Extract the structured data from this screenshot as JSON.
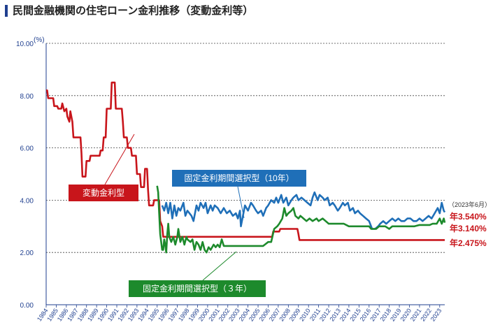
{
  "title": "民間金融機関の住宅ローン金利推移（変動金利等）",
  "chart_data": {
    "type": "line",
    "unit": "(%)",
    "ylim": [
      0,
      10
    ],
    "yticks": [
      "0.00",
      "2.00",
      "4.00",
      "6.00",
      "8.00",
      "10.00"
    ],
    "xlim": [
      1984,
      2023.5
    ],
    "xticks": [
      "1984",
      "1985",
      "1986",
      "1987",
      "1988",
      "1989",
      "1990",
      "1991",
      "1992",
      "1993",
      "1994",
      "1995",
      "1996",
      "1997",
      "1998",
      "1999",
      "2000",
      "2001",
      "2002",
      "2003",
      "2004",
      "2005",
      "2006",
      "2007",
      "2008",
      "2009",
      "2010",
      "2011",
      "2012",
      "2013",
      "2014",
      "2015",
      "2016",
      "2017",
      "2018",
      "2019",
      "2020",
      "2021",
      "2022",
      "2023"
    ],
    "grid": true,
    "as_of": "（2023年6月）",
    "series": [
      {
        "name": "変動金利型",
        "color": "#c8151b",
        "end_label": "年2.475%",
        "points": [
          [
            1984.0,
            8.2
          ],
          [
            1984.1,
            8.2
          ],
          [
            1984.2,
            7.9
          ],
          [
            1984.7,
            7.9
          ],
          [
            1984.8,
            7.6
          ],
          [
            1985.1,
            7.6
          ],
          [
            1985.2,
            7.5
          ],
          [
            1985.5,
            7.5
          ],
          [
            1985.6,
            7.7
          ],
          [
            1985.8,
            7.4
          ],
          [
            1986.0,
            7.5
          ],
          [
            1986.1,
            7.2
          ],
          [
            1986.3,
            7.0
          ],
          [
            1986.4,
            7.4
          ],
          [
            1986.6,
            7.0
          ],
          [
            1986.7,
            6.4
          ],
          [
            1987.4,
            6.4
          ],
          [
            1987.5,
            5.8
          ],
          [
            1987.6,
            4.9
          ],
          [
            1987.9,
            4.9
          ],
          [
            1988.0,
            5.5
          ],
          [
            1988.3,
            5.5
          ],
          [
            1988.4,
            5.7
          ],
          [
            1989.3,
            5.7
          ],
          [
            1989.4,
            5.9
          ],
          [
            1989.6,
            5.9
          ],
          [
            1989.7,
            6.4
          ],
          [
            1989.9,
            6.4
          ],
          [
            1990.0,
            7.5
          ],
          [
            1990.4,
            7.5
          ],
          [
            1990.5,
            8.5
          ],
          [
            1990.8,
            8.5
          ],
          [
            1990.9,
            7.5
          ],
          [
            1991.5,
            7.5
          ],
          [
            1991.6,
            7.0
          ],
          [
            1991.7,
            6.4
          ],
          [
            1992.0,
            6.4
          ],
          [
            1992.1,
            6.0
          ],
          [
            1992.4,
            6.0
          ],
          [
            1992.5,
            5.7
          ],
          [
            1992.9,
            5.7
          ],
          [
            1993.0,
            5.0
          ],
          [
            1993.3,
            5.0
          ],
          [
            1993.4,
            4.5
          ],
          [
            1993.7,
            4.5
          ],
          [
            1993.8,
            5.2
          ],
          [
            1994.0,
            5.2
          ],
          [
            1994.1,
            4.4
          ],
          [
            1994.2,
            3.8
          ],
          [
            1994.6,
            3.8
          ],
          [
            1994.7,
            4.0
          ],
          [
            1995.2,
            4.0
          ],
          [
            1995.3,
            3.2
          ],
          [
            1995.5,
            3.0
          ],
          [
            1995.6,
            2.6
          ],
          [
            2006.4,
            2.6
          ],
          [
            2006.5,
            2.8
          ],
          [
            2007.1,
            2.8
          ],
          [
            2007.2,
            2.9
          ],
          [
            2008.9,
            2.9
          ],
          [
            2009.0,
            2.7
          ],
          [
            2009.1,
            2.475
          ],
          [
            2023.5,
            2.475
          ]
        ]
      },
      {
        "name": "固定金利期間選択型（10年）",
        "color": "#1f6fb8",
        "end_label": "年3.540%",
        "points": [
          [
            1995.5,
            3.8
          ],
          [
            1995.7,
            3.6
          ],
          [
            1995.9,
            3.9
          ],
          [
            1996.1,
            3.5
          ],
          [
            1996.3,
            3.9
          ],
          [
            1996.5,
            3.3
          ],
          [
            1996.7,
            3.8
          ],
          [
            1996.9,
            3.4
          ],
          [
            1997.1,
            3.7
          ],
          [
            1997.3,
            3.6
          ],
          [
            1997.6,
            3.9
          ],
          [
            1997.8,
            3.4
          ],
          [
            1998.0,
            3.6
          ],
          [
            1998.2,
            3.5
          ],
          [
            1998.4,
            3.4
          ],
          [
            1998.6,
            3.2
          ],
          [
            1998.9,
            3.8
          ],
          [
            1999.1,
            3.6
          ],
          [
            1999.3,
            3.9
          ],
          [
            1999.6,
            3.7
          ],
          [
            1999.8,
            3.9
          ],
          [
            2000.0,
            3.5
          ],
          [
            2000.3,
            3.8
          ],
          [
            2000.5,
            3.6
          ],
          [
            2000.7,
            3.8
          ],
          [
            2001.0,
            3.7
          ],
          [
            2001.3,
            3.5
          ],
          [
            2001.6,
            3.7
          ],
          [
            2001.9,
            3.5
          ],
          [
            2002.2,
            3.6
          ],
          [
            2002.5,
            3.4
          ],
          [
            2002.8,
            3.5
          ],
          [
            2003.0,
            3.3
          ],
          [
            2003.2,
            3.6
          ],
          [
            2003.3,
            3.0
          ],
          [
            2003.5,
            3.4
          ],
          [
            2003.7,
            3.8
          ],
          [
            2004.0,
            3.6
          ],
          [
            2004.3,
            3.9
          ],
          [
            2004.5,
            3.8
          ],
          [
            2004.8,
            3.6
          ],
          [
            2005.0,
            3.5
          ],
          [
            2005.3,
            3.6
          ],
          [
            2005.5,
            3.4
          ],
          [
            2005.8,
            3.7
          ],
          [
            2006.0,
            3.8
          ],
          [
            2006.3,
            4.0
          ],
          [
            2006.6,
            3.9
          ],
          [
            2006.8,
            4.1
          ],
          [
            2007.0,
            3.9
          ],
          [
            2007.3,
            4.2
          ],
          [
            2007.5,
            3.9
          ],
          [
            2007.8,
            4.1
          ],
          [
            2008.0,
            3.8
          ],
          [
            2008.3,
            4.0
          ],
          [
            2008.5,
            4.1
          ],
          [
            2008.8,
            4.2
          ],
          [
            2009.0,
            4.0
          ],
          [
            2009.3,
            4.1
          ],
          [
            2009.6,
            4.0
          ],
          [
            2009.9,
            3.9
          ],
          [
            2010.2,
            3.8
          ],
          [
            2010.4,
            4.1
          ],
          [
            2010.6,
            4.3
          ],
          [
            2010.9,
            4.0
          ],
          [
            2011.1,
            4.2
          ],
          [
            2011.4,
            4.1
          ],
          [
            2011.6,
            4.0
          ],
          [
            2011.9,
            4.1
          ],
          [
            2012.1,
            3.8
          ],
          [
            2012.4,
            3.9
          ],
          [
            2012.6,
            3.8
          ],
          [
            2012.9,
            3.6
          ],
          [
            2013.1,
            3.7
          ],
          [
            2013.4,
            3.9
          ],
          [
            2013.6,
            3.8
          ],
          [
            2013.9,
            3.9
          ],
          [
            2014.1,
            3.6
          ],
          [
            2014.4,
            3.7
          ],
          [
            2014.6,
            3.5
          ],
          [
            2014.9,
            3.6
          ],
          [
            2015.1,
            3.5
          ],
          [
            2015.4,
            3.4
          ],
          [
            2015.7,
            3.3
          ],
          [
            2016.0,
            3.2
          ],
          [
            2016.3,
            2.9
          ],
          [
            2016.6,
            2.9
          ],
          [
            2016.9,
            3.0
          ],
          [
            2017.1,
            3.1
          ],
          [
            2017.4,
            3.2
          ],
          [
            2017.7,
            3.1
          ],
          [
            2018.0,
            3.2
          ],
          [
            2018.3,
            3.3
          ],
          [
            2018.6,
            3.2
          ],
          [
            2018.9,
            3.3
          ],
          [
            2019.2,
            3.2
          ],
          [
            2019.5,
            3.2
          ],
          [
            2019.8,
            3.3
          ],
          [
            2020.1,
            3.3
          ],
          [
            2020.4,
            3.2
          ],
          [
            2020.7,
            3.2
          ],
          [
            2021.0,
            3.3
          ],
          [
            2021.3,
            3.2
          ],
          [
            2021.6,
            3.3
          ],
          [
            2021.9,
            3.4
          ],
          [
            2022.2,
            3.3
          ],
          [
            2022.5,
            3.5
          ],
          [
            2022.8,
            3.7
          ],
          [
            2023.0,
            3.5
          ],
          [
            2023.2,
            3.9
          ],
          [
            2023.4,
            3.6
          ],
          [
            2023.5,
            3.54
          ]
        ]
      },
      {
        "name": "固定金利期間選択型（３年）",
        "color": "#1d8a2c",
        "end_label": "年3.140%",
        "points": [
          [
            1995.0,
            4.55
          ],
          [
            1995.1,
            4.3
          ],
          [
            1995.2,
            3.5
          ],
          [
            1995.3,
            2.7
          ],
          [
            1995.5,
            2.1
          ],
          [
            1995.6,
            2.1
          ],
          [
            1995.7,
            2.5
          ],
          [
            1995.8,
            2.3
          ],
          [
            1995.9,
            2.0
          ],
          [
            1996.0,
            2.7
          ],
          [
            1996.1,
            3.1
          ],
          [
            1996.2,
            2.6
          ],
          [
            1996.4,
            2.4
          ],
          [
            1996.6,
            2.6
          ],
          [
            1996.8,
            2.3
          ],
          [
            1997.0,
            2.6
          ],
          [
            1997.1,
            2.9
          ],
          [
            1997.3,
            2.4
          ],
          [
            1997.5,
            2.6
          ],
          [
            1997.7,
            2.3
          ],
          [
            1997.9,
            2.6
          ],
          [
            1998.0,
            2.5
          ],
          [
            1998.3,
            2.4
          ],
          [
            1998.5,
            2.5
          ],
          [
            1998.7,
            2.1
          ],
          [
            1998.9,
            2.4
          ],
          [
            1999.1,
            2.3
          ],
          [
            1999.3,
            2.1
          ],
          [
            1999.5,
            2.4
          ],
          [
            1999.7,
            2.1
          ],
          [
            1999.9,
            2.0
          ],
          [
            2000.1,
            2.2
          ],
          [
            2000.3,
            2.1
          ],
          [
            2000.6,
            2.3
          ],
          [
            2000.8,
            2.2
          ],
          [
            2001.0,
            2.3
          ],
          [
            2001.2,
            2.2
          ],
          [
            2001.4,
            2.5
          ],
          [
            2001.6,
            2.25
          ],
          [
            2002.5,
            2.25
          ],
          [
            2003.5,
            2.25
          ],
          [
            2004.5,
            2.25
          ],
          [
            2005.5,
            2.25
          ],
          [
            2006.0,
            2.4
          ],
          [
            2006.3,
            2.4
          ],
          [
            2006.6,
            2.9
          ],
          [
            2006.9,
            3.0
          ],
          [
            2007.1,
            3.1
          ],
          [
            2007.4,
            3.3
          ],
          [
            2007.6,
            3.7
          ],
          [
            2007.8,
            3.4
          ],
          [
            2008.0,
            3.5
          ],
          [
            2008.3,
            3.6
          ],
          [
            2008.5,
            3.7
          ],
          [
            2008.7,
            3.4
          ],
          [
            2009.0,
            3.3
          ],
          [
            2009.2,
            3.4
          ],
          [
            2009.5,
            3.3
          ],
          [
            2009.8,
            3.2
          ],
          [
            2010.1,
            3.3
          ],
          [
            2010.4,
            3.2
          ],
          [
            2010.8,
            3.3
          ],
          [
            2011.0,
            3.2
          ],
          [
            2011.4,
            3.3
          ],
          [
            2011.7,
            3.2
          ],
          [
            2012.0,
            3.1
          ],
          [
            2012.5,
            3.1
          ],
          [
            2013.0,
            3.1
          ],
          [
            2013.5,
            3.1
          ],
          [
            2014.0,
            3.0
          ],
          [
            2014.5,
            3.0
          ],
          [
            2015.0,
            3.0
          ],
          [
            2015.5,
            3.0
          ],
          [
            2016.0,
            3.0
          ],
          [
            2016.2,
            2.9
          ],
          [
            2016.4,
            2.9
          ],
          [
            2016.7,
            2.9
          ],
          [
            2017.0,
            3.0
          ],
          [
            2017.3,
            3.0
          ],
          [
            2017.6,
            3.0
          ],
          [
            2018.0,
            2.9
          ],
          [
            2018.3,
            3.0
          ],
          [
            2018.7,
            3.0
          ],
          [
            2019.0,
            3.0
          ],
          [
            2019.5,
            3.0
          ],
          [
            2020.0,
            3.0
          ],
          [
            2020.5,
            3.0
          ],
          [
            2021.0,
            3.05
          ],
          [
            2021.5,
            3.05
          ],
          [
            2022.0,
            3.05
          ],
          [
            2022.3,
            3.1
          ],
          [
            2022.7,
            3.1
          ],
          [
            2023.0,
            3.3
          ],
          [
            2023.2,
            3.1
          ],
          [
            2023.4,
            3.3
          ],
          [
            2023.5,
            3.14
          ]
        ]
      }
    ],
    "callouts": {
      "variable": "変動金利型",
      "fixed10": "固定金利期間選択型（10年）",
      "fixed3": "固定金利期間選択型（３年）"
    }
  }
}
